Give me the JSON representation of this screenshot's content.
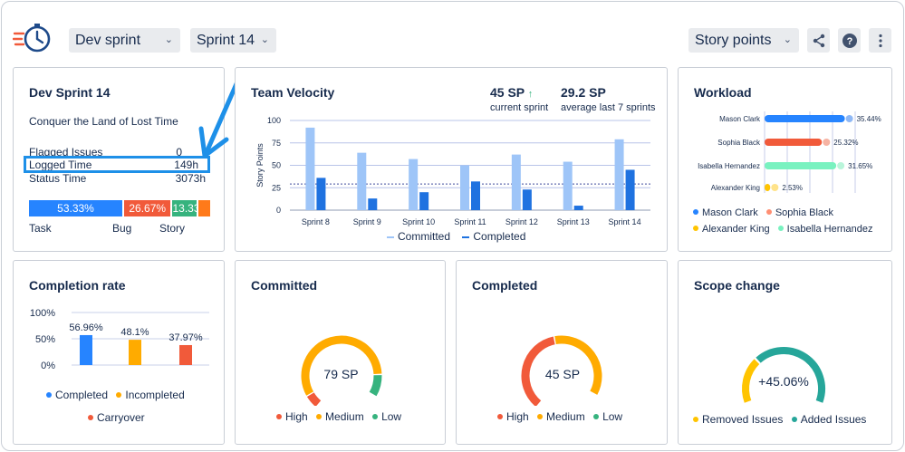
{
  "header": {
    "board_select": "Dev sprint",
    "sprint_select": "Sprint 14",
    "metric_select": "Story points",
    "share_icon": "share-icon",
    "help_icon": "help-icon",
    "more_icon": "more-vertical-icon"
  },
  "sprint_card": {
    "title": "Dev Sprint 14",
    "goal": "Conquer the Land of Lost Time",
    "rows": [
      {
        "label": "Flagged Issues",
        "value": "0"
      },
      {
        "label": "Logged Time",
        "value": "149h"
      },
      {
        "label": "Status Time",
        "value": "3073h"
      }
    ],
    "type_bars": [
      {
        "label": "53.33%",
        "fraction": 0.5333,
        "color": "#2684ff"
      },
      {
        "label": "26.67%",
        "fraction": 0.2667,
        "color": "#f15a3a"
      },
      {
        "label": "13.33%",
        "fraction": 0.1333,
        "color": "#36b37e"
      },
      {
        "label": "",
        "fraction": 0.0667,
        "color": "#ff7a1a"
      }
    ],
    "type_labels": [
      "Task",
      "Bug",
      "Story"
    ],
    "highlight_color": "#1e90e8"
  },
  "velocity_card": {
    "title": "Team Velocity",
    "current_value": "45 SP",
    "current_caption": "current sprint",
    "average_value": "29.2 SP",
    "average_caption": "average last 7 sprints",
    "legend": [
      "Committed",
      "Completed"
    ]
  },
  "workload_card": {
    "title": "Workload",
    "legend": [
      "Mason Clark",
      "Sophia Black",
      "Alexander King",
      "Isabella Hernandez"
    ]
  },
  "completion_card": {
    "title": "Completion rate",
    "legend": [
      "Completed",
      "Incompleted",
      "Carryover"
    ]
  },
  "committed_card": {
    "title": "Committed",
    "center_label": "79 SP",
    "legend": [
      "High",
      "Medium",
      "Low"
    ]
  },
  "completed_card": {
    "title": "Completed",
    "center_label": "45 SP",
    "legend": [
      "High",
      "Medium",
      "Low"
    ]
  },
  "scope_card": {
    "title": "Scope change",
    "center_label": "+45.06%",
    "legend": [
      "Removed Issues",
      "Added Issues"
    ]
  },
  "chart_data": [
    {
      "type": "bar",
      "name": "velocity",
      "title": "Team Velocity",
      "ylabel": "Story Points",
      "ylim": [
        0,
        100
      ],
      "yticks": [
        0,
        25,
        50,
        75,
        100
      ],
      "categories": [
        "Sprint 8",
        "Sprint 9",
        "Sprint 10",
        "Sprint 11",
        "Sprint 12",
        "Sprint 13",
        "Sprint 14"
      ],
      "series": [
        {
          "name": "Committed",
          "color": "#9ec5f8",
          "values": [
            92,
            64,
            57,
            50,
            62,
            54,
            79
          ]
        },
        {
          "name": "Completed",
          "color": "#1f72e0",
          "values": [
            36,
            13,
            20,
            32,
            23,
            5,
            45
          ]
        }
      ],
      "average_line": 29.2
    },
    {
      "type": "bar",
      "name": "workload",
      "orientation": "horizontal",
      "categories": [
        "Mason Clark",
        "Sophia Black",
        "Isabella Hernandez",
        "Alexander King"
      ],
      "values": [
        35.44,
        25.32,
        31.65,
        2.53
      ],
      "value_labels": [
        "35.44%",
        "25.32%",
        "31.65%",
        "2.53%"
      ],
      "colors": [
        "#2684ff",
        "#f15a3a",
        "#79f2c0",
        "#ffc400"
      ]
    },
    {
      "type": "bar",
      "name": "completion_rate",
      "ylim": [
        0,
        100
      ],
      "yticks": [
        "0%",
        "50%",
        "100%"
      ],
      "categories": [
        "Completed",
        "Incompleted",
        "Carryover"
      ],
      "values": [
        56.96,
        48.1,
        37.97
      ],
      "value_labels": [
        "56.96%",
        "48.1%",
        "37.97%"
      ],
      "colors": [
        "#2684ff",
        "#ffab00",
        "#f15a3a"
      ]
    },
    {
      "type": "pie",
      "name": "committed_gauge",
      "categories": [
        "High",
        "Medium",
        "Low"
      ],
      "values": [
        8,
        80,
        12
      ],
      "colors": [
        "#f15a3a",
        "#ffab00",
        "#36b37e"
      ]
    },
    {
      "type": "pie",
      "name": "completed_gauge",
      "categories": [
        "High",
        "Medium",
        "Low"
      ],
      "values": [
        50,
        50,
        0
      ],
      "colors": [
        "#f15a3a",
        "#ffab00",
        "#36b37e"
      ]
    },
    {
      "type": "pie",
      "name": "scope_gauge",
      "categories": [
        "Removed Issues",
        "Added Issues"
      ],
      "values": [
        31,
        69
      ],
      "colors": [
        "#ffc400",
        "#26a69a"
      ]
    }
  ]
}
